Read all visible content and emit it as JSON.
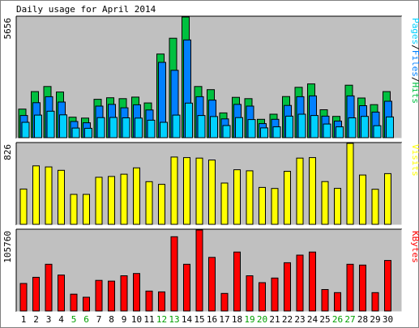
{
  "chart_data": {
    "type": "bar",
    "title": "Daily usage for April 2014",
    "days": [
      "1",
      "2",
      "3",
      "4",
      "5",
      "6",
      "7",
      "8",
      "9",
      "10",
      "11",
      "12",
      "13",
      "14",
      "15",
      "16",
      "17",
      "18",
      "19",
      "20",
      "21",
      "22",
      "23",
      "24",
      "25",
      "26",
      "27",
      "28",
      "29",
      "30"
    ],
    "weekend_days": [
      "5",
      "6",
      "12",
      "13",
      "19",
      "20",
      "26",
      "27"
    ],
    "colors": {
      "background": "#ffffff",
      "panel": "#c0c0c0",
      "hits": "#00c040",
      "files": "#0080ff",
      "pages": "#00d0ff",
      "visits": "#ffff00",
      "kbytes": "#ff0000",
      "weekday_label": "#000000",
      "weekend_label": "#00a000"
    },
    "panels": [
      {
        "id": "hits_files_pages",
        "ymax_label": "5656",
        "ymax": 5656,
        "side_label": [
          "Pages",
          "/",
          "Files",
          "/",
          "Hits"
        ],
        "side_label_colors": [
          "#00d0ff",
          "#000000",
          "#0080ff",
          "#000000",
          "#00c040"
        ],
        "series": [
          {
            "name": "Hits",
            "values": [
              1340,
              2160,
              2400,
              2140,
              960,
              920,
              1800,
              1870,
              1830,
              1900,
              1630,
              3920,
              4660,
              5656,
              2400,
              2250,
              1160,
              1890,
              1830,
              860,
              1100,
              1930,
              2360,
              2520,
              1310,
              1000,
              2460,
              1860,
              1550,
              2160
            ]
          },
          {
            "name": "Files",
            "values": [
              1040,
              1640,
              1920,
              1670,
              760,
              700,
              1480,
              1560,
              1400,
              1540,
              1300,
              3530,
              3160,
              4580,
              1920,
              1760,
              880,
              1560,
              1480,
              660,
              860,
              1510,
              1920,
              1960,
              1010,
              780,
              1960,
              1500,
              1200,
              1710
            ]
          },
          {
            "name": "Pages",
            "values": [
              720,
              1060,
              1240,
              1070,
              450,
              440,
              940,
              950,
              930,
              920,
              820,
              720,
              1060,
              1620,
              1040,
              990,
              570,
              940,
              850,
              460,
              510,
              1010,
              1100,
              1040,
              640,
              510,
              930,
              1000,
              560,
              970
            ]
          }
        ]
      },
      {
        "id": "visits",
        "ymax_label": "826",
        "ymax": 826,
        "side_label": [
          "Visits"
        ],
        "side_label_colors": [
          "#ffff00"
        ],
        "series": [
          {
            "name": "Visits",
            "values": [
              360,
              596,
              586,
              551,
              306,
              306,
              480,
              488,
              511,
              576,
              435,
              408,
              686,
              681,
              676,
              656,
              421,
              557,
              546,
              377,
              366,
              541,
              676,
              681,
              436,
              367,
              826,
              503,
              358,
              517
            ]
          }
        ]
      },
      {
        "id": "kbytes",
        "ymax_label": "105760",
        "ymax": 105760,
        "side_label": [
          "KBytes"
        ],
        "side_label_colors": [
          "#ff0000"
        ],
        "series": [
          {
            "name": "KBytes",
            "values": [
              36000,
              44000,
              61000,
              47000,
              22000,
              18000,
              40000,
              39000,
              46000,
              49000,
              26000,
              25000,
              97000,
              61000,
              105760,
              70000,
              23000,
              77000,
              46000,
              37000,
              43000,
              63000,
              73000,
              77000,
              28000,
              24000,
              61000,
              60000,
              24000,
              66000
            ]
          }
        ]
      }
    ]
  }
}
